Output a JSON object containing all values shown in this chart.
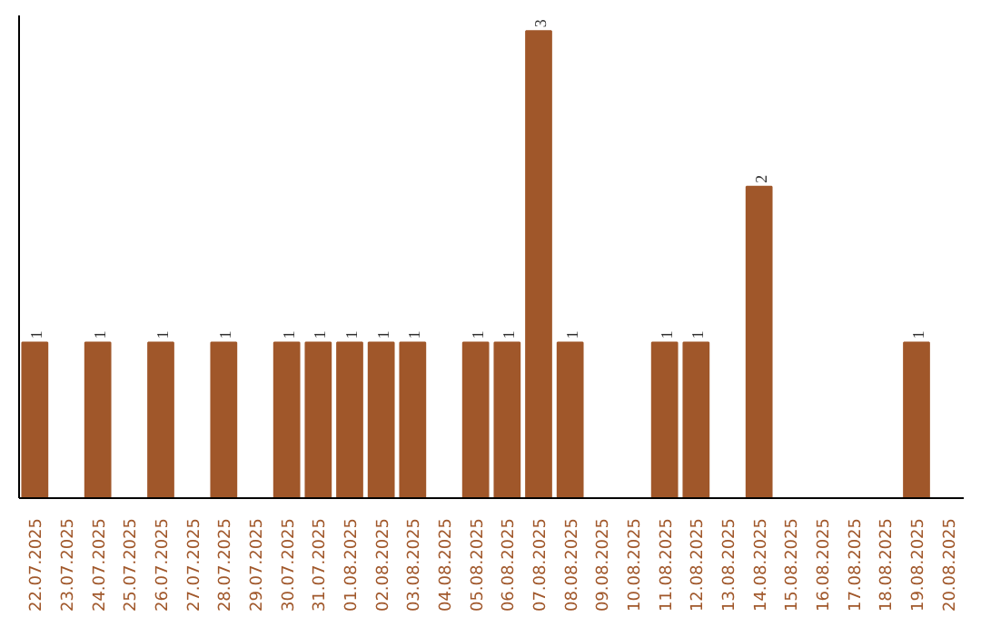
{
  "chart_data": {
    "type": "bar",
    "categories": [
      "22.07.2025",
      "23.07.2025",
      "24.07.2025",
      "25.07.2025",
      "26.07.2025",
      "27.07.2025",
      "28.07.2025",
      "29.07.2025",
      "30.07.2025",
      "31.07.2025",
      "01.08.2025",
      "02.08.2025",
      "03.08.2025",
      "04.08.2025",
      "05.08.2025",
      "06.08.2025",
      "07.08.2025",
      "08.08.2025",
      "09.08.2025",
      "10.08.2025",
      "11.08.2025",
      "12.08.2025",
      "13.08.2025",
      "14.08.2025",
      "15.08.2025",
      "16.08.2025",
      "17.08.2025",
      "18.08.2025",
      "19.08.2025",
      "20.08.2025"
    ],
    "values": [
      1,
      0,
      1,
      0,
      1,
      0,
      1,
      0,
      1,
      1,
      1,
      1,
      1,
      0,
      1,
      1,
      3,
      1,
      0,
      0,
      1,
      1,
      0,
      2,
      0,
      0,
      0,
      0,
      1,
      0
    ],
    "value_labels": [
      "1",
      null,
      "1",
      null,
      "1",
      null,
      "1",
      null,
      "1",
      "1",
      "1",
      "1",
      "1",
      null,
      "1",
      "1",
      "3",
      "1",
      null,
      null,
      "1",
      "1",
      null,
      "2",
      null,
      null,
      null,
      null,
      "1",
      null
    ],
    "color": "#a0572a",
    "ylim": [
      0,
      3.1
    ],
    "tick_labels": "x",
    "grid": false
  }
}
